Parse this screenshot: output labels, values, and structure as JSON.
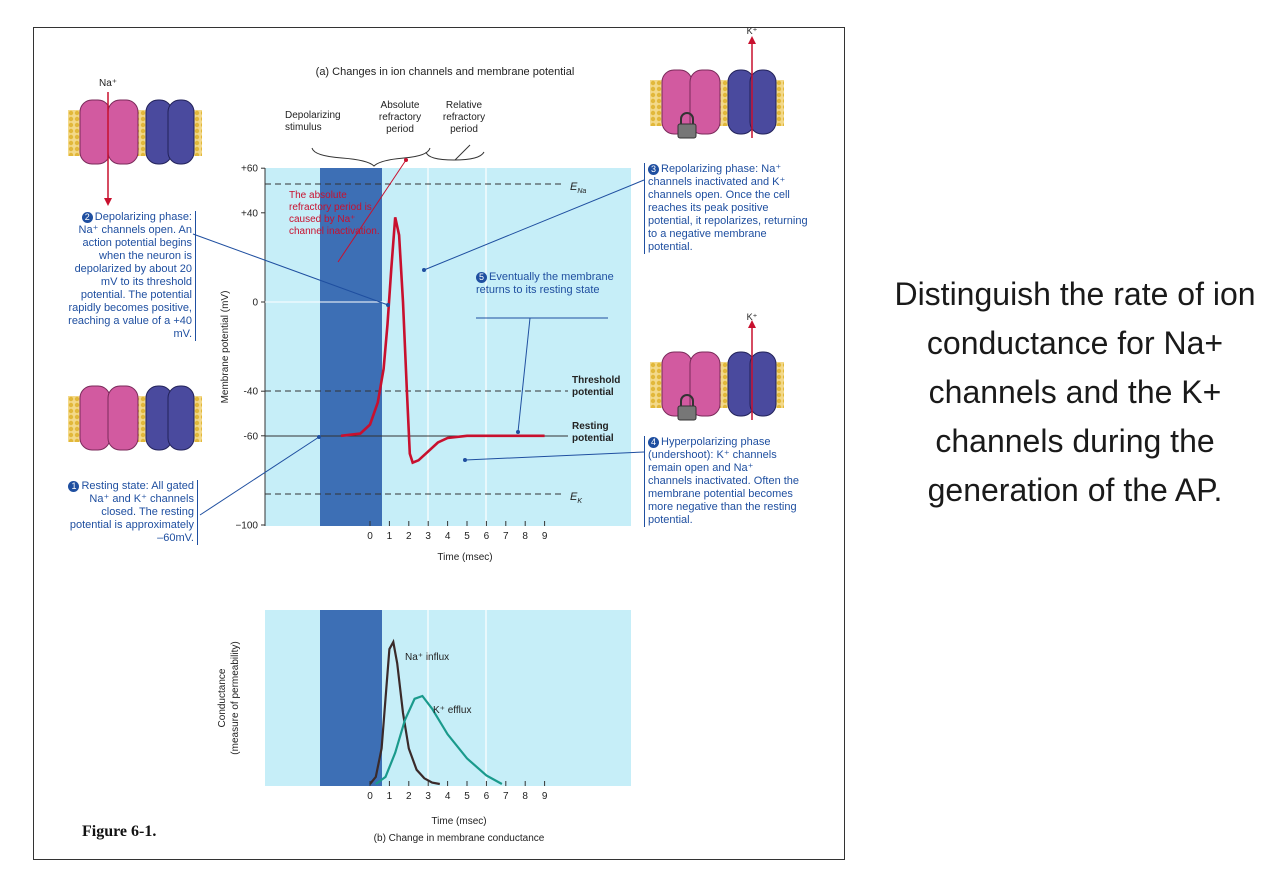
{
  "figure_label": "Figure 6-1.",
  "question": "Distinguish the rate of ion conductance for Na+ channels and the K+ channels during the generation of the AP.",
  "panel_a": {
    "title": "(a) Changes in ion channels and membrane potential",
    "ylabel": "Membrane potential (mV)",
    "xlabel": "Time (msec)",
    "yticks": [
      "+60",
      "+40",
      "0",
      "-40",
      "-60",
      "−100"
    ],
    "xticks": [
      "0",
      "1",
      "2",
      "3",
      "4",
      "5",
      "6",
      "7",
      "8",
      "9"
    ],
    "stimulus_label": "Depolarizing stimulus",
    "arp_label": "Absolute refractory period",
    "rrp_label": "Relative refractory period",
    "arp_note": "The absolute refractory period is caused by Na⁺ channel inactivation.",
    "ena": "E",
    "ena_sub": "Na",
    "ek": "E",
    "ek_sub": "K",
    "threshold": "Threshold potential",
    "resting": "Resting potential",
    "note5_num": "5",
    "note5": "Eventually the membrane returns to its resting state"
  },
  "panel_b": {
    "title": "(b) Change in membrane conductance",
    "ylabel": "Conductance (measure of permeability)",
    "xlabel": "Time (msec)",
    "na_label": "Na⁺ influx",
    "k_label": "K⁺ efflux"
  },
  "notes": {
    "n1_num": "1",
    "n1": "Resting state: All gated Na⁺ and K⁺ channels closed. The resting potential is approximately –60mV.",
    "n2_num": "2",
    "n2": "Depolarizing phase: Na⁺ channels open. An action potential begins when the neuron is depolarized by about 20 mV to its threshold potential. The potential rapidly becomes positive, reaching a value of a +40 mV.",
    "n3_num": "3",
    "n3": "Repolarizing phase: Na⁺ channels inactivated and K⁺ channels open. Once the cell reaches its peak positive potential, it repolarizes, returning to a negative membrane potential.",
    "n4_num": "4",
    "n4": "Hyperpolarizing phase (undershoot): K⁺ channels remain open and Na⁺ channels inactivated. Often the membrane potential becomes more negative than the resting potential."
  },
  "ions": {
    "na": "Na⁺",
    "k": "K⁺"
  },
  "colors": {
    "panel_bg": "#c6eef8",
    "stimulus": "#3d6fb5",
    "ap_curve": "#c8102e",
    "k_curve": "#1a9a8c",
    "na_curve": "#3a2a2a",
    "annot": "#1f4fa0"
  },
  "chart_data": [
    {
      "type": "line",
      "title": "(a) Changes in ion channels and membrane potential",
      "xlabel": "Time (msec)",
      "ylabel": "Membrane potential (mV)",
      "xlim": [
        -1.5,
        11
      ],
      "ylim": [
        -100,
        60
      ],
      "series": [
        {
          "x": [
            -1.5,
            -0.5,
            0,
            0.4,
            0.7,
            0.9,
            1.1,
            1.3,
            1.5,
            1.7,
            1.9,
            2.05,
            2.2,
            2.5,
            3,
            3.5,
            4,
            5,
            6,
            7,
            9
          ],
          "y": [
            -60,
            -59,
            -55,
            -45,
            -30,
            -10,
            15,
            38,
            30,
            0,
            -40,
            -68,
            -72,
            -71,
            -67,
            -63,
            -61,
            -60,
            -60,
            -60,
            -60
          ]
        }
      ]
    },
    {
      "type": "line",
      "title": "(b) Change in membrane conductance",
      "xlabel": "Time (msec)",
      "ylabel": "Conductance (measure of permeability)",
      "xlim": [
        -1.5,
        11
      ],
      "ylim": [
        0,
        1
      ],
      "series": [
        {
          "name": "Na⁺ influx",
          "x": [
            0,
            0.3,
            0.6,
            0.8,
            1.0,
            1.2,
            1.4,
            1.7,
            2.0,
            2.4,
            2.8,
            3.2,
            3.6
          ],
          "y": [
            0,
            0.05,
            0.25,
            0.6,
            0.95,
            1.0,
            0.85,
            0.5,
            0.25,
            0.1,
            0.04,
            0.01,
            0
          ]
        },
        {
          "name": "K⁺ efflux",
          "x": [
            0.3,
            0.8,
            1.3,
            1.8,
            2.3,
            2.7,
            3.2,
            4.0,
            5.0,
            6.0,
            6.8
          ],
          "y": [
            0,
            0.05,
            0.22,
            0.45,
            0.6,
            0.62,
            0.53,
            0.35,
            0.18,
            0.06,
            0
          ]
        }
      ]
    }
  ]
}
